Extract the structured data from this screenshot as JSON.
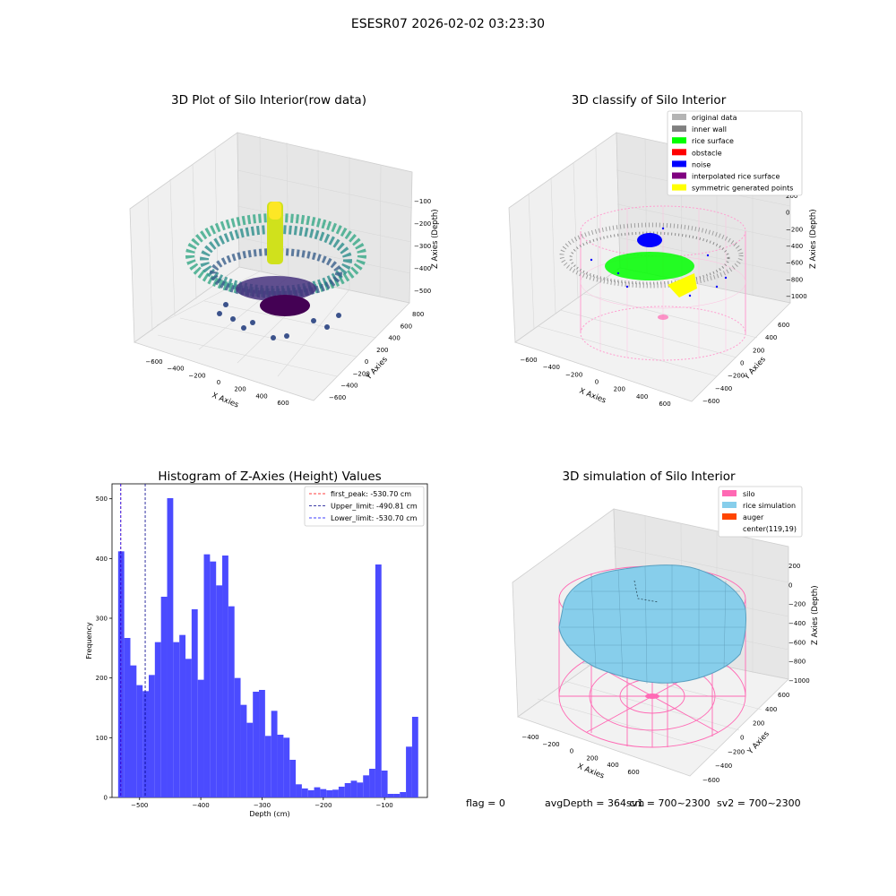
{
  "figure": {
    "suptitle": "ESESR07 2026-02-02 03:23:30",
    "footer": {
      "flag": "flag = 0",
      "avg_depth": "avgDepth = 364 cm",
      "sv1": "sv1 = 700~2300",
      "sv2": "sv2 = 700~2300"
    }
  },
  "chart_data": [
    {
      "type": "scatter",
      "projection": "3d",
      "title": "3D Plot of Silo Interior(row data)",
      "xlabel": "X Axies",
      "ylabel": "Y Axies",
      "zlabel": "Z Axies (Depth)",
      "x_ticks": [
        "−600",
        "−400",
        "−200",
        "0",
        "200",
        "400",
        "600"
      ],
      "y_ticks": [
        "−600",
        "−400",
        "−200",
        "0",
        "200",
        "400",
        "600",
        "800"
      ],
      "z_ticks": [
        "−100",
        "−200",
        "−300",
        "−400",
        "−500"
      ],
      "colormap": "viridis"
    },
    {
      "type": "scatter",
      "projection": "3d",
      "title": "3D classify of Silo Interior",
      "xlabel": "X Axies",
      "ylabel": "Y Axies",
      "zlabel": "Z Axies (Depth)",
      "x_ticks": [
        "−600",
        "−400",
        "−200",
        "0",
        "200",
        "400",
        "600"
      ],
      "y_ticks": [
        "−600",
        "−400",
        "−200",
        "0",
        "200",
        "400",
        "600"
      ],
      "z_ticks": [
        "200",
        "0",
        "−200",
        "−400",
        "−600",
        "−800",
        "−1000"
      ],
      "legend": [
        {
          "label": "original data",
          "color": "#b4b4b4"
        },
        {
          "label": "inner wall",
          "color": "#808080"
        },
        {
          "label": "rice surface",
          "color": "#00ff00"
        },
        {
          "label": "obstacle",
          "color": "#ff0000"
        },
        {
          "label": "noise",
          "color": "#0000ff"
        },
        {
          "label": "interpolated rice surface",
          "color": "#800080"
        },
        {
          "label": "symmetric generated points",
          "color": "#ffff00"
        }
      ],
      "legend_position": "top-right"
    },
    {
      "type": "bar",
      "title": "Histogram of Z-Axies (Height) Values",
      "xlabel": "Depth (cm)",
      "ylabel": "Frequency",
      "bar_color": "#4b4bff",
      "xlim": [
        -545,
        -30
      ],
      "ylim": [
        0,
        525
      ],
      "x_ticks": [
        -500,
        -400,
        -300,
        -200,
        -100
      ],
      "y_ticks": [
        0,
        100,
        200,
        300,
        400,
        500
      ],
      "bin_width": 10,
      "bin_starts": [
        -535,
        -525,
        -515,
        -505,
        -495,
        -485,
        -475,
        -465,
        -455,
        -445,
        -435,
        -425,
        -415,
        -405,
        -395,
        -385,
        -375,
        -365,
        -355,
        -345,
        -335,
        -325,
        -315,
        -305,
        -295,
        -285,
        -275,
        -265,
        -255,
        -245,
        -235,
        -225,
        -215,
        -205,
        -195,
        -185,
        -175,
        -165,
        -155,
        -145,
        -135,
        -125,
        -115,
        -105,
        -95,
        -85,
        -75,
        -65,
        -55,
        -45
      ],
      "values": [
        412,
        267,
        221,
        188,
        178,
        205,
        260,
        336,
        501,
        260,
        272,
        232,
        315,
        197,
        407,
        395,
        355,
        405,
        320,
        200,
        155,
        125,
        177,
        180,
        103,
        145,
        105,
        100,
        63,
        22,
        15,
        12,
        17,
        14,
        12,
        13,
        18,
        24,
        28,
        25,
        37,
        48,
        390,
        45,
        6,
        6,
        9,
        85,
        135,
        0
      ],
      "vlines": [
        {
          "label": "first_peak: -530.70 cm",
          "x": -530.7,
          "color": "#ff0000"
        },
        {
          "label": "Upper_limit: -490.81 cm",
          "x": -490.81,
          "color": "#00008b"
        },
        {
          "label": "Lower_limit: -530.70 cm",
          "x": -530.7,
          "color": "#0000ff"
        }
      ],
      "legend_position": "top-right"
    },
    {
      "type": "surface",
      "projection": "3d",
      "title": "3D simulation of Silo Interior",
      "xlabel": "X Axies",
      "ylabel": "Y Axies",
      "zlabel": "Z Axies (Depth)",
      "x_ticks": [
        "−400",
        "−200",
        "0",
        "200",
        "400",
        "600"
      ],
      "y_ticks": [
        "−600",
        "−400",
        "−200",
        "0",
        "200",
        "400",
        "600"
      ],
      "z_ticks": [
        "200",
        "0",
        "−200",
        "−400",
        "−600",
        "−800",
        "−1000"
      ],
      "legend": [
        {
          "label": "silo",
          "color": "#ff69b4"
        },
        {
          "label": "rice simulation",
          "color": "#87ceeb"
        },
        {
          "label": "auger",
          "color": "#ff4500"
        },
        {
          "label": "center(119,19)",
          "color": "none"
        }
      ],
      "legend_position": "top-right"
    }
  ]
}
